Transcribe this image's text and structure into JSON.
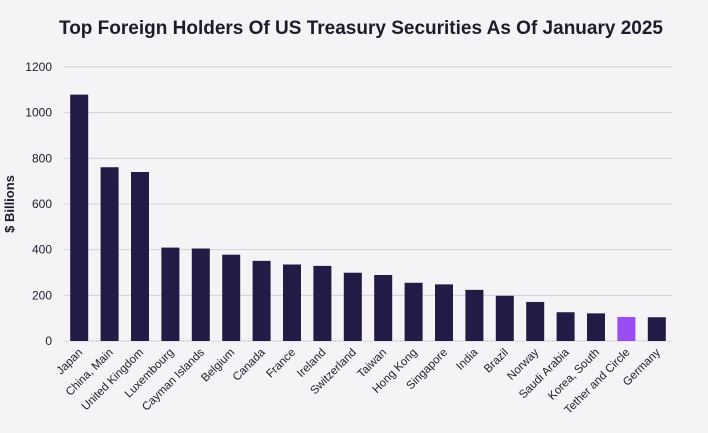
{
  "chart_data": {
    "type": "bar",
    "title": "Top Foreign Holders Of US Treasury Securities As Of January 2025",
    "xlabel": "",
    "ylabel": "$ Billions",
    "ylim": [
      0,
      1200
    ],
    "yticks": [
      0,
      200,
      400,
      600,
      800,
      1000,
      1200
    ],
    "grid": true,
    "categories": [
      "Japan",
      "China, Main",
      "United Kingdom",
      "Luxembourg",
      "Cayman Islands",
      "Belgium",
      "Canada",
      "France",
      "Ireland",
      "Switzerland",
      "Taiwan",
      "Hong Kong",
      "Singapore",
      "India",
      "Brazil",
      "Norway",
      "Saudi Arabia",
      "Korea, South",
      "Tether and Circle",
      "Germany"
    ],
    "values": [
      1079,
      761,
      740,
      409,
      405,
      378,
      351,
      335,
      329,
      299,
      289,
      255,
      248,
      224,
      198,
      171,
      126,
      121,
      105,
      104
    ],
    "colors": {
      "default": "#231a45",
      "highlight": "#9a4df2",
      "highlight_category": "Tether and Circle",
      "grid": "#d2d2da",
      "text": "#1c1c2b"
    }
  }
}
